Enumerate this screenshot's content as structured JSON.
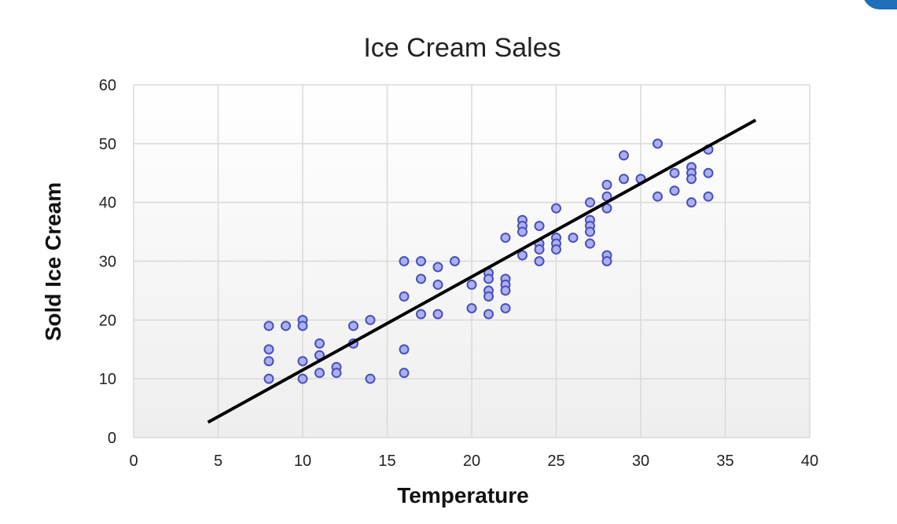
{
  "chart_data": {
    "type": "scatter",
    "title": "Ice Cream Sales",
    "xlabel": "Temperature",
    "ylabel": "Sold Ice Cream",
    "xlim": [
      0,
      40
    ],
    "ylim": [
      0,
      60
    ],
    "xticks": [
      0,
      5,
      10,
      15,
      20,
      25,
      30,
      35,
      40
    ],
    "yticks": [
      0,
      10,
      20,
      30,
      40,
      50,
      60
    ],
    "grid": true,
    "legend": "none",
    "colors": {
      "point_fill": "#aab0f0",
      "point_stroke": "#4a4fb8",
      "trendline": "#000000",
      "plot_bg_top": "#ffffff",
      "plot_bg_bottom": "#eeeeee",
      "grid": "#d9d9d9"
    },
    "points": [
      [
        8,
        19
      ],
      [
        8,
        15
      ],
      [
        8,
        13
      ],
      [
        8,
        10
      ],
      [
        9,
        19
      ],
      [
        10,
        20
      ],
      [
        10,
        19
      ],
      [
        10,
        13
      ],
      [
        10,
        10
      ],
      [
        11,
        16
      ],
      [
        11,
        14
      ],
      [
        11,
        11
      ],
      [
        12,
        12
      ],
      [
        12,
        11
      ],
      [
        13,
        19
      ],
      [
        13,
        16
      ],
      [
        14,
        20
      ],
      [
        14,
        10
      ],
      [
        16,
        30
      ],
      [
        16,
        24
      ],
      [
        16,
        15
      ],
      [
        16,
        11
      ],
      [
        17,
        30
      ],
      [
        17,
        27
      ],
      [
        17,
        21
      ],
      [
        18,
        29
      ],
      [
        18,
        26
      ],
      [
        18,
        21
      ],
      [
        19,
        30
      ],
      [
        20,
        26
      ],
      [
        20,
        22
      ],
      [
        21,
        28
      ],
      [
        21,
        27
      ],
      [
        21,
        25
      ],
      [
        21,
        24
      ],
      [
        21,
        21
      ],
      [
        22,
        34
      ],
      [
        22,
        27
      ],
      [
        22,
        26
      ],
      [
        22,
        25
      ],
      [
        22,
        22
      ],
      [
        23,
        37
      ],
      [
        23,
        36
      ],
      [
        23,
        35
      ],
      [
        23,
        31
      ],
      [
        24,
        36
      ],
      [
        24,
        33
      ],
      [
        24,
        32
      ],
      [
        24,
        30
      ],
      [
        25,
        39
      ],
      [
        25,
        34
      ],
      [
        25,
        33
      ],
      [
        25,
        32
      ],
      [
        26,
        34
      ],
      [
        27,
        40
      ],
      [
        27,
        37
      ],
      [
        27,
        36
      ],
      [
        27,
        35
      ],
      [
        27,
        33
      ],
      [
        28,
        43
      ],
      [
        28,
        41
      ],
      [
        28,
        39
      ],
      [
        28,
        31
      ],
      [
        28,
        30
      ],
      [
        29,
        48
      ],
      [
        29,
        44
      ],
      [
        30,
        44
      ],
      [
        31,
        50
      ],
      [
        31,
        41
      ],
      [
        32,
        45
      ],
      [
        32,
        42
      ],
      [
        33,
        46
      ],
      [
        33,
        45
      ],
      [
        33,
        44
      ],
      [
        33,
        40
      ],
      [
        34,
        49
      ],
      [
        34,
        45
      ],
      [
        34,
        41
      ]
    ],
    "trendline": [
      [
        4.4,
        2.6
      ],
      [
        36.8,
        54.0
      ]
    ]
  }
}
